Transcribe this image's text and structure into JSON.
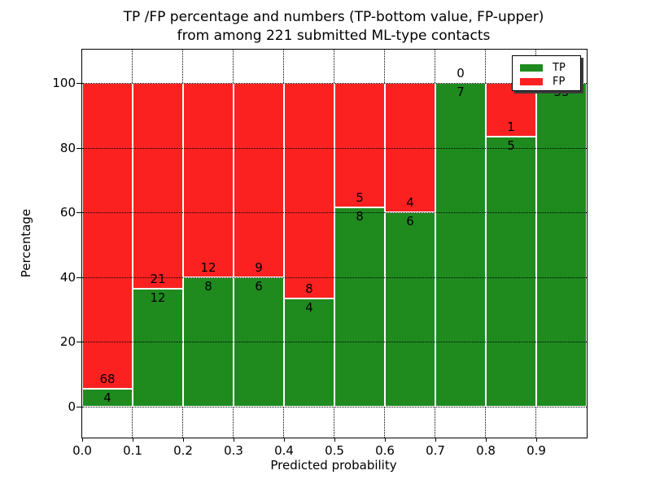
{
  "figure": {
    "title_line1": "TP /FP percentage and numbers (TP-bottom value, FP-upper)",
    "title_line2": "from among 221 submitted ML-type contacts"
  },
  "chart_data": {
    "type": "bar",
    "stacked": true,
    "normalized_to_100_percent": true,
    "title": "TP /FP percentage and numbers (TP-bottom value, FP-upper)\nfrom among 221 submitted ML-type contacts",
    "xlabel": "Predicted probability",
    "ylabel": "Percentage",
    "x_tick_labels": [
      "0.0",
      "0.1",
      "0.2",
      "0.3",
      "0.4",
      "0.5",
      "0.6",
      "0.7",
      "0.8",
      "0.9"
    ],
    "y_ticks": [
      0,
      20,
      40,
      60,
      80,
      100
    ],
    "xlim": [
      0.0,
      1.0
    ],
    "ylim": [
      -10,
      110
    ],
    "grid": "dotted",
    "bar_edge_color": "#ffffff",
    "colors": {
      "tp": "#1f8b1f",
      "fp": "#fb2121"
    },
    "legend": {
      "position": "upper right",
      "shadow": true,
      "entries": [
        {
          "label": "TP",
          "color": "#1f8b1f"
        },
        {
          "label": "FP",
          "color": "#fb2121"
        }
      ]
    },
    "bins": [
      {
        "x_start": 0.0,
        "x_end": 0.1,
        "tp": 4,
        "fp": 68
      },
      {
        "x_start": 0.1,
        "x_end": 0.2,
        "tp": 12,
        "fp": 21
      },
      {
        "x_start": 0.2,
        "x_end": 0.3,
        "tp": 8,
        "fp": 12
      },
      {
        "x_start": 0.3,
        "x_end": 0.4,
        "tp": 6,
        "fp": 9
      },
      {
        "x_start": 0.4,
        "x_end": 0.5,
        "tp": 4,
        "fp": 8
      },
      {
        "x_start": 0.5,
        "x_end": 0.6,
        "tp": 8,
        "fp": 5
      },
      {
        "x_start": 0.6,
        "x_end": 0.7,
        "tp": 6,
        "fp": 4
      },
      {
        "x_start": 0.7,
        "x_end": 0.8,
        "tp": 7,
        "fp": 0
      },
      {
        "x_start": 0.8,
        "x_end": 0.9,
        "tp": 5,
        "fp": 1
      },
      {
        "x_start": 0.9,
        "x_end": 1.0,
        "tp": 33,
        "fp": 0
      }
    ],
    "total_contacts": 221,
    "annotation_rule": "FP count printed above each stack boundary, TP count below it"
  }
}
